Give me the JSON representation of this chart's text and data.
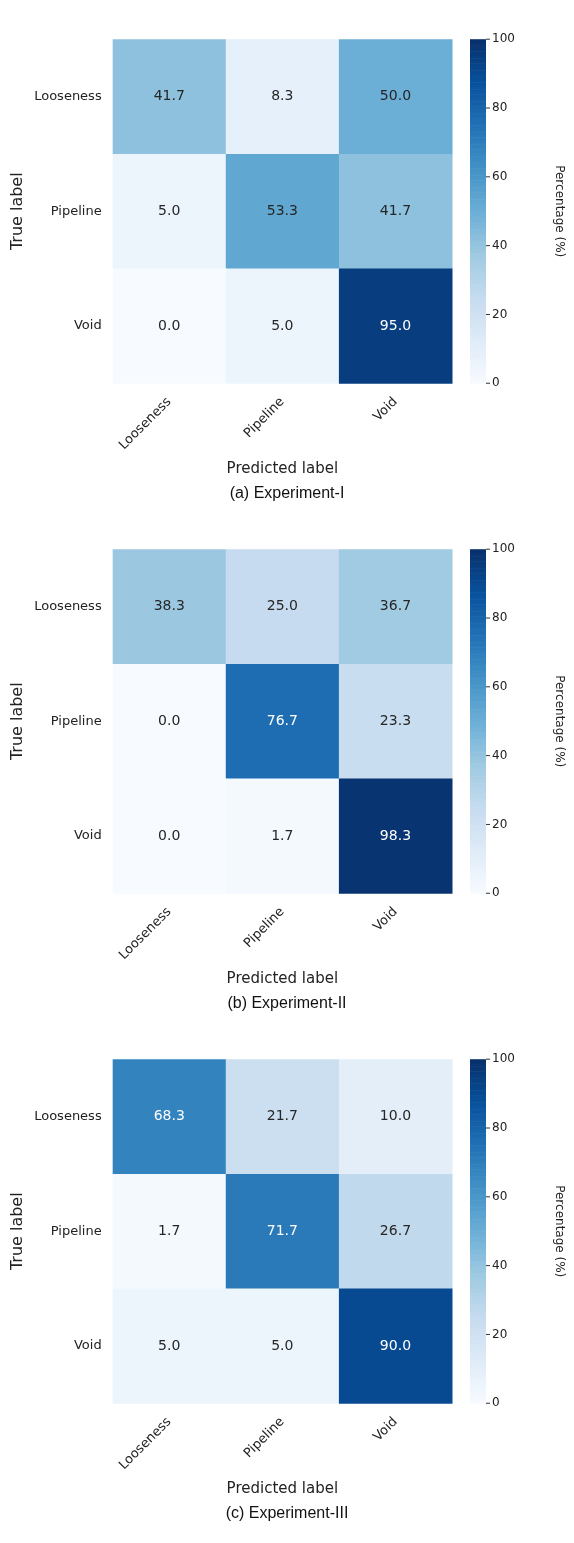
{
  "chart_data": [
    {
      "type": "heatmap",
      "title": "(a) Experiment-I",
      "xlabel": "Predicted label",
      "ylabel": "True label",
      "clabel": "Percentage (%)",
      "categories": [
        "Looseness",
        "Pipeline",
        "Void"
      ],
      "y_categories": [
        "Looseness",
        "Pipeline",
        "Void"
      ],
      "cells": [
        [
          41.7,
          8.3,
          50.0
        ],
        [
          5.0,
          53.3,
          41.7
        ],
        [
          0.0,
          5.0,
          95.0
        ]
      ],
      "cell_labels": [
        [
          "41.7",
          "8.3",
          "50.0"
        ],
        [
          "5.0",
          "53.3",
          "41.7"
        ],
        [
          "0.0",
          "5.0",
          "95.0"
        ]
      ],
      "clim": [
        0,
        100
      ],
      "cticks": [
        0,
        20,
        40,
        60,
        80,
        100
      ],
      "data_labels": true
    },
    {
      "type": "heatmap",
      "title": "(b) Experiment-II",
      "xlabel": "Predicted label",
      "ylabel": "True label",
      "clabel": "Percentage (%)",
      "categories": [
        "Looseness",
        "Pipeline",
        "Void"
      ],
      "y_categories": [
        "Looseness",
        "Pipeline",
        "Void"
      ],
      "cells": [
        [
          38.3,
          25.0,
          36.7
        ],
        [
          0.0,
          76.7,
          23.3
        ],
        [
          0.0,
          1.7,
          98.3
        ]
      ],
      "cell_labels": [
        [
          "38.3",
          "25.0",
          "36.7"
        ],
        [
          "0.0",
          "76.7",
          "23.3"
        ],
        [
          "0.0",
          "1.7",
          "98.3"
        ]
      ],
      "clim": [
        0,
        100
      ],
      "cticks": [
        0,
        20,
        40,
        60,
        80,
        100
      ],
      "data_labels": true
    },
    {
      "type": "heatmap",
      "title": "(c) Experiment-III",
      "xlabel": "Predicted label",
      "ylabel": "True label",
      "clabel": "Percentage (%)",
      "categories": [
        "Looseness",
        "Pipeline",
        "Void"
      ],
      "y_categories": [
        "Looseness",
        "Pipeline",
        "Void"
      ],
      "cells": [
        [
          68.3,
          21.7,
          10.0
        ],
        [
          1.7,
          71.7,
          26.7
        ],
        [
          5.0,
          5.0,
          90.0
        ]
      ],
      "cell_labels": [
        [
          "68.3",
          "21.7",
          "10.0"
        ],
        [
          "1.7",
          "71.7",
          "26.7"
        ],
        [
          "5.0",
          "5.0",
          "90.0"
        ]
      ],
      "clim": [
        0,
        100
      ],
      "cticks": [
        0,
        20,
        40,
        60,
        80,
        100
      ],
      "data_labels": true
    }
  ]
}
